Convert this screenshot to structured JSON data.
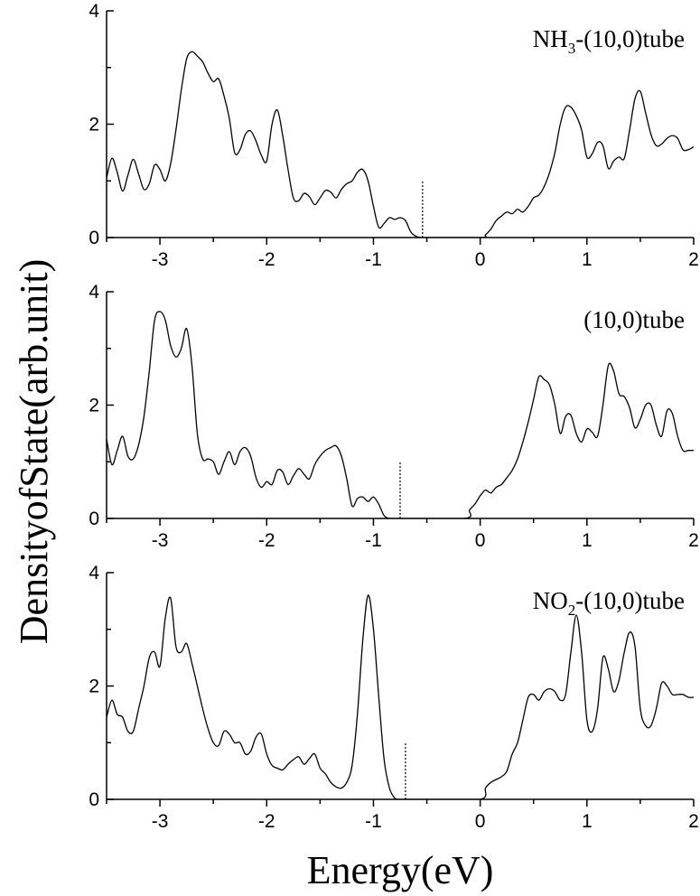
{
  "chart_data": {
    "type": "line",
    "ylabel": "DensityofState(arb.unit)",
    "xlabel": "Energy(eV)",
    "xlim": [
      -3.5,
      2
    ],
    "xticks": [
      "-3",
      "-2",
      "-1",
      "0",
      "1",
      "2"
    ],
    "grid": false,
    "panels": [
      {
        "label": "NH",
        "label_sub": "3",
        "label_rest": "-(10,0)tube",
        "ylim": [
          0,
          4
        ],
        "yticks": [
          "0",
          "2",
          "4"
        ],
        "fermi_level": -0.54,
        "fermi_marker_height": 1.0,
        "series": [
          {
            "x": [
              -3.5,
              -3.45,
              -3.4,
              -3.35,
              -3.3,
              -3.25,
              -3.2,
              -3.15,
              -3.1,
              -3.05,
              -3.0,
              -2.95,
              -2.9,
              -2.85,
              -2.8,
              -2.75,
              -2.7,
              -2.65,
              -2.6,
              -2.55,
              -2.5,
              -2.45,
              -2.4,
              -2.35,
              -2.3,
              -2.25,
              -2.2,
              -2.15,
              -2.1,
              -2.05,
              -2.0,
              -1.95,
              -1.9,
              -1.85,
              -1.8,
              -1.75,
              -1.7,
              -1.65,
              -1.6,
              -1.55,
              -1.5,
              -1.45,
              -1.4,
              -1.35,
              -1.3,
              -1.25,
              -1.2,
              -1.15,
              -1.1,
              -1.05,
              -1.0,
              -0.95,
              -0.9,
              -0.85,
              -0.8,
              -0.75,
              -0.7,
              -0.65,
              -0.6,
              -0.55,
              -0.5,
              0.0,
              0.05,
              0.1,
              0.15,
              0.2,
              0.25,
              0.3,
              0.35,
              0.4,
              0.45,
              0.5,
              0.55,
              0.6,
              0.65,
              0.7,
              0.75,
              0.8,
              0.85,
              0.9,
              0.95,
              1.0,
              1.05,
              1.1,
              1.15,
              1.2,
              1.25,
              1.3,
              1.35,
              1.4,
              1.45,
              1.5,
              1.55,
              1.6,
              1.65,
              1.7,
              1.75,
              1.8,
              1.85,
              1.9,
              1.95,
              2.0
            ],
            "y": [
              1.05,
              1.4,
              1.15,
              0.82,
              1.1,
              1.38,
              1.12,
              0.85,
              0.95,
              1.28,
              1.2,
              1.0,
              1.3,
              1.9,
              2.6,
              3.15,
              3.28,
              3.2,
              3.1,
              2.9,
              2.75,
              2.8,
              2.5,
              2.1,
              1.5,
              1.55,
              1.82,
              1.88,
              1.7,
              1.45,
              1.35,
              2.0,
              2.25,
              1.8,
              1.2,
              0.7,
              0.65,
              0.78,
              0.72,
              0.58,
              0.7,
              0.83,
              0.8,
              0.7,
              0.85,
              0.95,
              1.0,
              1.15,
              1.2,
              1.0,
              0.55,
              0.18,
              0.25,
              0.35,
              0.32,
              0.35,
              0.3,
              0.1,
              0.02,
              0.0,
              0.0,
              0.0,
              0.05,
              0.15,
              0.3,
              0.38,
              0.45,
              0.42,
              0.5,
              0.45,
              0.55,
              0.7,
              0.75,
              0.9,
              1.15,
              1.5,
              2.0,
              2.3,
              2.3,
              2.15,
              1.9,
              1.42,
              1.48,
              1.68,
              1.62,
              1.22,
              1.35,
              1.42,
              1.4,
              1.9,
              2.45,
              2.58,
              2.2,
              1.82,
              1.62,
              1.65,
              1.75,
              1.8,
              1.75,
              1.55,
              1.55,
              1.6
            ]
          }
        ]
      },
      {
        "label": "(10,0)tube",
        "label_sub": "",
        "label_rest": "",
        "ylim": [
          0,
          4
        ],
        "yticks": [
          "0",
          "2",
          "4"
        ],
        "fermi_level": -0.75,
        "fermi_marker_height": 1.0,
        "series": [
          {
            "x": [
              -3.5,
              -3.45,
              -3.4,
              -3.35,
              -3.3,
              -3.25,
              -3.2,
              -3.15,
              -3.1,
              -3.05,
              -3.0,
              -2.95,
              -2.9,
              -2.85,
              -2.8,
              -2.75,
              -2.7,
              -2.65,
              -2.6,
              -2.55,
              -2.5,
              -2.45,
              -2.4,
              -2.35,
              -2.3,
              -2.25,
              -2.2,
              -2.15,
              -2.1,
              -2.05,
              -2.0,
              -1.95,
              -1.9,
              -1.85,
              -1.8,
              -1.75,
              -1.7,
              -1.65,
              -1.6,
              -1.55,
              -1.5,
              -1.45,
              -1.4,
              -1.35,
              -1.3,
              -1.25,
              -1.2,
              -1.15,
              -1.1,
              -1.05,
              -1.0,
              -0.95,
              -0.9,
              -0.85,
              -0.8,
              -0.15,
              -0.1,
              -0.05,
              0.0,
              0.05,
              0.1,
              0.15,
              0.2,
              0.25,
              0.3,
              0.35,
              0.4,
              0.45,
              0.5,
              0.55,
              0.6,
              0.65,
              0.7,
              0.75,
              0.8,
              0.85,
              0.9,
              0.95,
              1.0,
              1.05,
              1.1,
              1.15,
              1.2,
              1.25,
              1.3,
              1.35,
              1.4,
              1.45,
              1.5,
              1.55,
              1.6,
              1.65,
              1.7,
              1.75,
              1.8,
              1.85,
              1.9,
              1.95,
              2.0
            ],
            "y": [
              1.4,
              0.95,
              1.2,
              1.45,
              1.1,
              1.05,
              1.3,
              1.8,
              2.6,
              3.5,
              3.65,
              3.5,
              3.05,
              2.85,
              3.0,
              3.35,
              2.7,
              1.5,
              1.05,
              1.05,
              1.0,
              0.78,
              1.0,
              1.18,
              0.95,
              1.18,
              1.25,
              1.1,
              0.72,
              0.55,
              0.65,
              0.6,
              0.85,
              0.82,
              0.6,
              0.75,
              0.88,
              0.78,
              0.7,
              0.95,
              1.1,
              1.2,
              1.25,
              1.28,
              1.1,
              0.7,
              0.22,
              0.35,
              0.38,
              0.3,
              0.38,
              0.25,
              0.05,
              0.0,
              0.0,
              0.0,
              0.15,
              0.25,
              0.4,
              0.5,
              0.45,
              0.55,
              0.6,
              0.72,
              0.85,
              1.05,
              1.35,
              1.7,
              2.1,
              2.5,
              2.45,
              2.35,
              2.0,
              1.5,
              1.8,
              1.82,
              1.5,
              1.35,
              1.58,
              1.52,
              1.45,
              2.0,
              2.7,
              2.6,
              2.2,
              2.15,
              1.95,
              1.6,
              1.75,
              2.0,
              2.0,
              1.65,
              1.45,
              1.9,
              1.85,
              1.45,
              1.2,
              1.2,
              1.2
            ]
          }
        ]
      },
      {
        "label": "NO",
        "label_sub": "2",
        "label_rest": "-(10,0)tube",
        "ylim": [
          0,
          4
        ],
        "yticks": [
          "0",
          "2",
          "4"
        ],
        "fermi_level": -0.7,
        "fermi_marker_height": 1.0,
        "series": [
          {
            "x": [
              -3.5,
              -3.45,
              -3.4,
              -3.35,
              -3.3,
              -3.25,
              -3.2,
              -3.15,
              -3.1,
              -3.05,
              -3.0,
              -2.95,
              -2.9,
              -2.85,
              -2.8,
              -2.75,
              -2.7,
              -2.65,
              -2.6,
              -2.55,
              -2.5,
              -2.45,
              -2.4,
              -2.35,
              -2.3,
              -2.25,
              -2.2,
              -2.15,
              -2.1,
              -2.05,
              -2.0,
              -1.95,
              -1.9,
              -1.85,
              -1.8,
              -1.75,
              -1.7,
              -1.65,
              -1.6,
              -1.55,
              -1.5,
              -1.45,
              -1.4,
              -1.35,
              -1.3,
              -1.25,
              -1.2,
              -1.15,
              -1.1,
              -1.05,
              -1.0,
              -0.95,
              -0.9,
              -0.85,
              -0.8,
              -0.77,
              -0.74,
              -0.72,
              -0.7,
              -0.68,
              -0.66,
              -0.64,
              -0.62,
              -0.6,
              -0.55,
              -0.5,
              0.0,
              0.05,
              0.1,
              0.15,
              0.2,
              0.25,
              0.3,
              0.35,
              0.4,
              0.45,
              0.5,
              0.55,
              0.6,
              0.65,
              0.7,
              0.75,
              0.8,
              0.85,
              0.9,
              0.95,
              1.0,
              1.05,
              1.1,
              1.15,
              1.2,
              1.25,
              1.3,
              1.35,
              1.4,
              1.45,
              1.5,
              1.55,
              1.6,
              1.65,
              1.7,
              1.75,
              1.8,
              1.85,
              1.9,
              1.95,
              2.0
            ],
            "y": [
              1.45,
              1.75,
              1.5,
              1.45,
              1.2,
              1.2,
              1.6,
              2.0,
              2.5,
              2.6,
              2.35,
              3.2,
              3.55,
              2.7,
              2.6,
              2.75,
              2.4,
              2.0,
              1.6,
              1.25,
              1.0,
              0.95,
              1.2,
              1.15,
              1.0,
              1.0,
              0.8,
              0.85,
              1.1,
              1.15,
              0.8,
              0.6,
              0.55,
              0.52,
              0.62,
              0.7,
              0.75,
              0.62,
              0.72,
              0.8,
              0.55,
              0.45,
              0.3,
              0.22,
              0.2,
              0.3,
              0.6,
              1.5,
              2.8,
              3.6,
              3.0,
              1.8,
              0.7,
              0.2,
              0.02,
              0.0,
              0.0,
              0.0,
              0.0,
              0.0,
              0.0,
              0.0,
              0.0,
              0.0,
              0.0,
              0.0,
              0.0,
              0.2,
              0.3,
              0.35,
              0.4,
              0.5,
              0.8,
              1.0,
              1.4,
              1.8,
              1.85,
              1.75,
              1.9,
              1.95,
              1.9,
              1.75,
              1.85,
              2.6,
              3.25,
              2.6,
              1.4,
              1.2,
              1.6,
              2.5,
              2.3,
              1.9,
              2.1,
              2.6,
              2.95,
              2.7,
              1.6,
              1.3,
              1.3,
              1.6,
              2.05,
              2.0,
              1.85,
              1.85,
              1.85,
              1.8,
              1.8
            ]
          }
        ]
      }
    ]
  }
}
